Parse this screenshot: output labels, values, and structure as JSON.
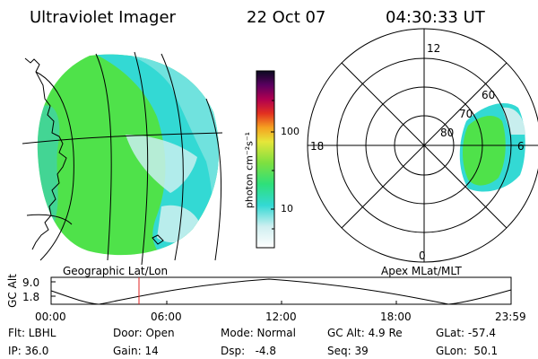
{
  "header": {
    "title": "Ultraviolet Imager",
    "date": "22 Oct 07",
    "time": "04:30:33 UT"
  },
  "geo_panel": {
    "caption": "Geographic Lat/Lon"
  },
  "polar_panel": {
    "caption": "Apex MLat/MLT",
    "mlt_labels": {
      "top": "12",
      "left": "18",
      "right": "6",
      "bottom": "0"
    },
    "lat_labels": [
      "60",
      "70",
      "80"
    ]
  },
  "colorbar": {
    "unit_label": "photon cm⁻²s⁻¹",
    "ticks": [
      "100",
      "10"
    ]
  },
  "altitude_plot": {
    "ylabel": "GC Alt",
    "yticks": [
      "9.0",
      "1.8"
    ],
    "xticks": [
      "00:00",
      "06:00",
      "12:00",
      "18:00",
      "23:59"
    ]
  },
  "info": {
    "row1": {
      "flt": "Flt: LBHL",
      "door": "Door: Open",
      "mode": "Mode: Normal",
      "gcalt": "GC Alt: 4.9 Re",
      "glat": "GLat: -57.4"
    },
    "row2": {
      "ip": "IP: 36.0",
      "gain": "Gain: 14",
      "dsp": "Dsp:   -4.8",
      "seq": "Seq: 39",
      "glon": "GLon:  50.1"
    }
  },
  "colors": {
    "green": "#4fe24a",
    "cyan": "#33d9d4",
    "pale": "#c8eeee",
    "orbit_marker": "#e02020"
  }
}
